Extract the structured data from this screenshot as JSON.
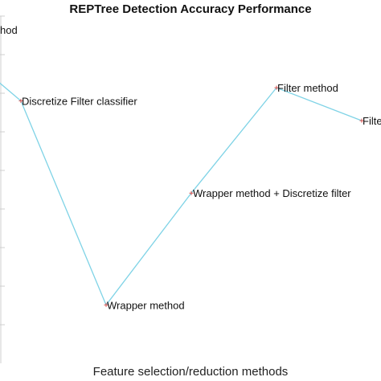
{
  "chart_data": {
    "type": "line",
    "title": "REPTree Detection Accuracy Performance",
    "xlabel": "Feature selection/reduction methods",
    "ylabel": "",
    "categories": [
      "... method",
      "Discretize Filter classifier",
      "Wrapper method",
      "Wrapper method + Discretize filter",
      "Filter method",
      "Filter ..."
    ],
    "point_labels": [
      "hod",
      "Discretize Filter classifier",
      "Wrapper method",
      "Wrapper method + Discretize filter",
      "Filter method",
      "Filte"
    ],
    "values": [
      0.95,
      0.92,
      0.61,
      0.78,
      0.94,
      0.89
    ],
    "ylim": [
      0.58,
      1.0
    ],
    "grid": false,
    "line_color": "#7fd3e6",
    "marker_color": "#d9534f"
  }
}
